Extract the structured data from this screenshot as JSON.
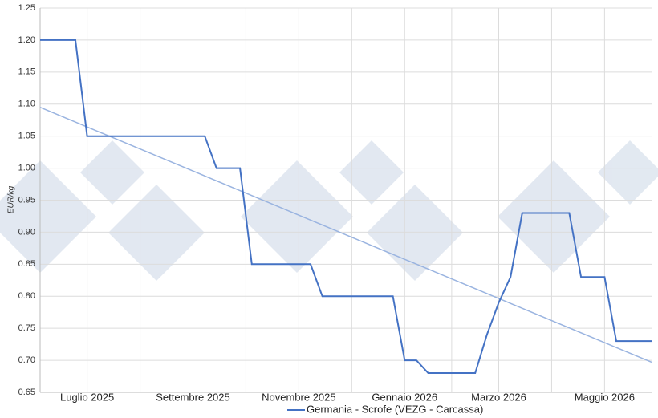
{
  "chart_data": {
    "type": "line",
    "y_label": "EUR/kg",
    "categories": [
      null,
      null,
      null,
      null,
      "Luglio 2025",
      null,
      null,
      null,
      null,
      null,
      null,
      null,
      null,
      "Settembre 2025",
      null,
      null,
      null,
      null,
      null,
      null,
      null,
      null,
      "Novembre 2025",
      null,
      null,
      null,
      null,
      null,
      null,
      null,
      null,
      "Gennaio 2026",
      null,
      null,
      null,
      null,
      null,
      null,
      null,
      "Marzo 2026",
      null,
      null,
      null,
      null,
      null,
      null,
      null,
      null,
      "Maggio 2026",
      null,
      null,
      null,
      null
    ],
    "series": [
      {
        "name": "Germania - Scrofe (VEZG - Carcassa)",
        "color": "#4472c4",
        "values": [
          1.2,
          1.2,
          1.2,
          1.2,
          1.05,
          1.05,
          1.05,
          1.05,
          1.05,
          1.05,
          1.05,
          1.05,
          1.05,
          1.05,
          1.05,
          1.0,
          1.0,
          1.0,
          0.85,
          0.85,
          0.85,
          0.85,
          0.85,
          0.85,
          0.8,
          0.8,
          0.8,
          0.8,
          0.8,
          0.8,
          0.8,
          0.7,
          0.7,
          0.68,
          0.68,
          0.68,
          0.68,
          0.68,
          0.74,
          0.79,
          0.83,
          0.93,
          0.93,
          0.93,
          0.93,
          0.93,
          0.83,
          0.83,
          0.83,
          0.73,
          0.73,
          0.73,
          0.73
        ]
      }
    ],
    "trend": {
      "color": "#9ab4e0",
      "values": [
        1.095,
        0.697
      ]
    },
    "ylim": [
      0.65,
      1.25
    ],
    "yticks": [
      0.65,
      {
        "value": 0.7,
        "label": "0.70"
      },
      0.75,
      {
        "value": 0.8,
        "label": "0.80"
      },
      0.85,
      {
        "value": 0.9,
        "label": "0.90"
      },
      0.95,
      {
        "value": 1.0,
        "label": "1.00"
      },
      1.05,
      {
        "value": 1.1,
        "label": "1.10"
      },
      1.15,
      {
        "value": 1.2,
        "label": "1.20"
      },
      1.25
    ],
    "grid": true
  }
}
